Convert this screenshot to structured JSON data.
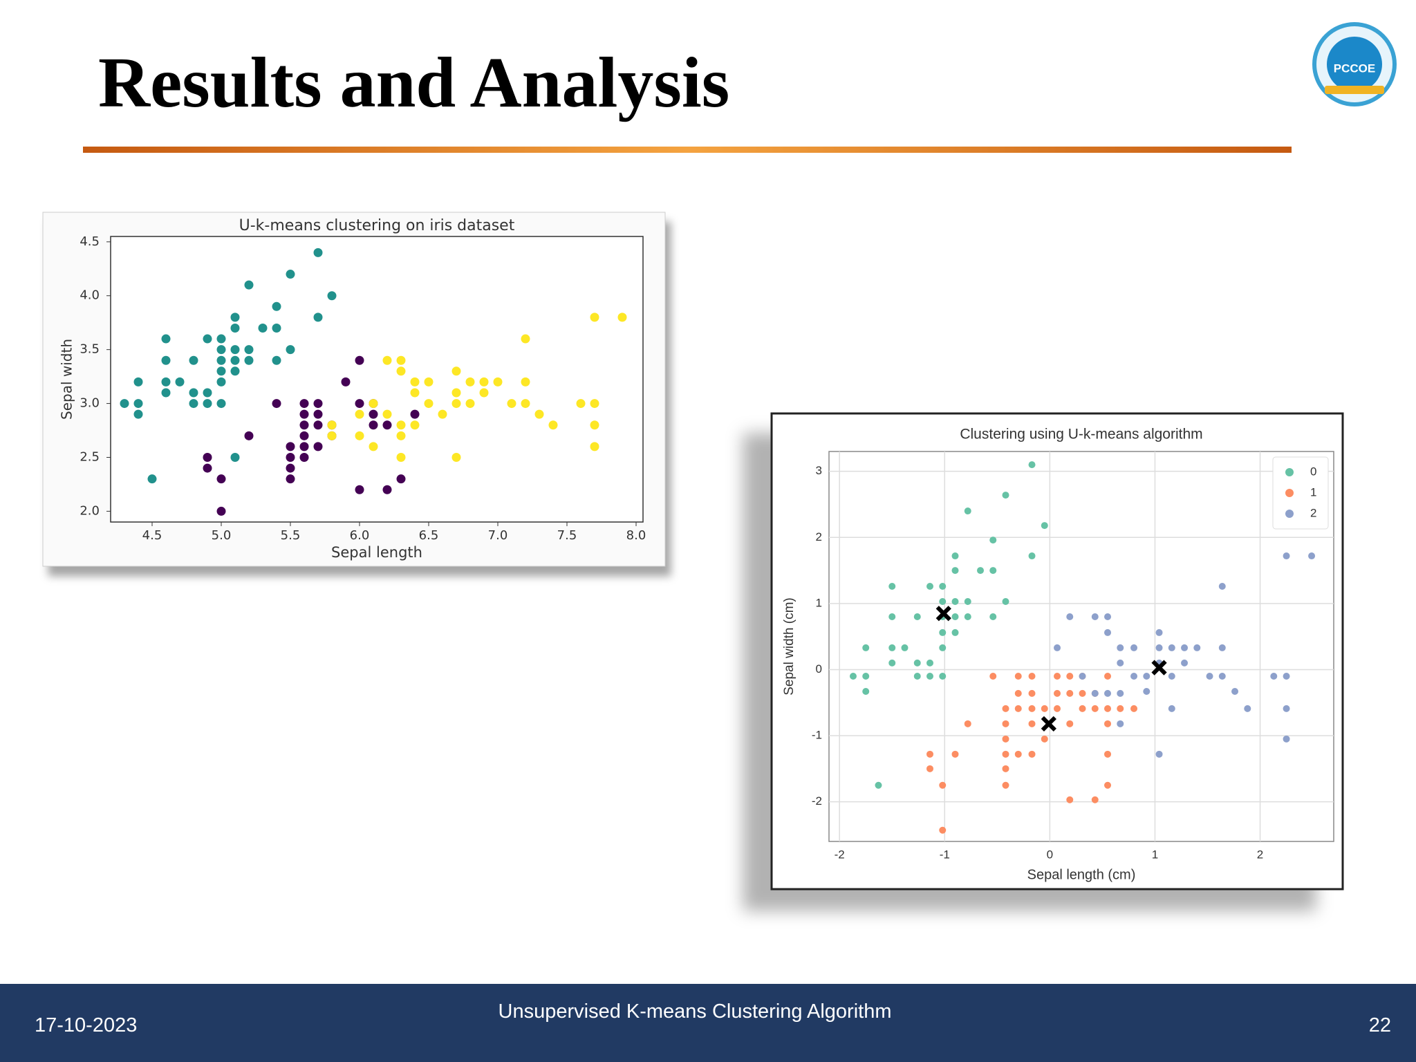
{
  "slide": {
    "title": "Results and Analysis",
    "logo_text": "PCCOE",
    "date": "17-10-2023",
    "footer": "Unsupervised K-means Clustering Algorithm",
    "page_number": "22"
  },
  "chart_data": [
    {
      "type": "scatter",
      "title": "U-k-means clustering on iris dataset",
      "x_label": "Sepal length",
      "y_label": "Sepal width",
      "xlim": [
        4.2,
        8.05
      ],
      "ylim": [
        1.9,
        4.55
      ],
      "xticks": [
        4.5,
        {
          "value": 5,
          "label": "5.0"
        },
        5.5,
        {
          "value": 6,
          "label": "6.0"
        },
        6.5,
        {
          "value": 7,
          "label": "7.0"
        },
        7.5,
        {
          "value": 8,
          "label": "8.0"
        }
      ],
      "yticks": [
        {
          "value": 2,
          "label": "2.0"
        },
        2.5,
        {
          "value": 3,
          "label": "3.0"
        },
        3.5,
        {
          "value": 4,
          "label": "4.0"
        },
        4.5
      ],
      "grid": false,
      "series": [
        {
          "color": "#21918c",
          "x": [
            4.3,
            4.4,
            4.4,
            4.4,
            4.5,
            4.6,
            4.6,
            4.6,
            4.6,
            4.7,
            4.8,
            4.8,
            4.8,
            4.9,
            4.9,
            4.9,
            5.0,
            5.0,
            5.0,
            5.0,
            5.0,
            5.0,
            5.1,
            5.1,
            5.1,
            5.1,
            5.1,
            5.2,
            5.2,
            5.2,
            5.3,
            5.4,
            5.4,
            5.4,
            5.5,
            5.5,
            5.7,
            5.7,
            5.8,
            5.1
          ],
          "y": [
            3.0,
            3.0,
            2.9,
            3.2,
            2.3,
            3.1,
            3.2,
            3.4,
            3.6,
            3.2,
            3.0,
            3.1,
            3.4,
            3.0,
            3.1,
            3.6,
            3.0,
            3.2,
            3.3,
            3.4,
            3.5,
            3.6,
            3.3,
            3.4,
            3.5,
            3.7,
            3.8,
            3.4,
            3.5,
            4.1,
            3.7,
            3.4,
            3.7,
            3.9,
            3.5,
            4.2,
            3.8,
            4.4,
            4.0,
            2.5
          ]
        },
        {
          "color": "#440154",
          "x": [
            4.9,
            4.9,
            5.0,
            5.0,
            5.2,
            5.4,
            5.5,
            5.5,
            5.5,
            5.5,
            5.6,
            5.6,
            5.6,
            5.6,
            5.6,
            5.6,
            5.7,
            5.7,
            5.7,
            5.7,
            5.8,
            5.8,
            5.9,
            6.0,
            6.0,
            6.0,
            6.1,
            6.1,
            6.1,
            6.2,
            6.2,
            6.3,
            6.4
          ],
          "y": [
            2.4,
            2.5,
            2.0,
            2.3,
            2.7,
            3.0,
            2.3,
            2.4,
            2.5,
            2.6,
            2.5,
            2.6,
            2.7,
            2.8,
            2.9,
            3.0,
            2.6,
            2.8,
            2.9,
            3.0,
            2.7,
            2.8,
            3.2,
            2.2,
            3.0,
            3.4,
            2.8,
            2.9,
            3.0,
            2.2,
            2.8,
            2.3,
            2.9
          ]
        },
        {
          "color": "#fde725",
          "x": [
            5.8,
            5.8,
            6.0,
            6.0,
            6.1,
            6.1,
            6.2,
            6.2,
            6.3,
            6.3,
            6.3,
            6.3,
            6.3,
            6.4,
            6.4,
            6.4,
            6.5,
            6.5,
            6.6,
            6.7,
            6.7,
            6.7,
            6.7,
            6.8,
            6.8,
            6.9,
            6.9,
            7.0,
            7.1,
            7.2,
            7.2,
            7.2,
            7.3,
            7.4,
            7.6,
            7.7,
            7.7,
            7.7,
            7.7,
            7.9
          ],
          "y": [
            2.7,
            2.8,
            2.7,
            2.9,
            3.0,
            2.6,
            2.9,
            3.4,
            2.5,
            2.7,
            2.8,
            3.3,
            3.4,
            2.8,
            3.1,
            3.2,
            3.0,
            3.2,
            2.9,
            2.5,
            3.0,
            3.1,
            3.3,
            3.0,
            3.2,
            3.1,
            3.2,
            3.2,
            3.0,
            3.0,
            3.2,
            3.6,
            2.9,
            2.8,
            3.0,
            2.6,
            2.8,
            3.0,
            3.8,
            3.8
          ]
        }
      ]
    },
    {
      "type": "scatter",
      "title": "Clustering using U-k-means algorithm",
      "x_label": "Sepal length (cm)",
      "y_label": "Sepal width (cm)",
      "xlim": [
        -2.1,
        2.7
      ],
      "ylim": [
        -2.6,
        3.3
      ],
      "xticks": [
        -2,
        -1,
        0,
        1,
        2
      ],
      "yticks": [
        -2,
        -1,
        0,
        1,
        2,
        3
      ],
      "grid": true,
      "legend": "upper right",
      "series": [
        {
          "name": "0",
          "color": "#66c2a5",
          "x": [
            -1.87,
            -1.75,
            -1.75,
            -1.75,
            -1.63,
            -1.5,
            -1.5,
            -1.5,
            -1.5,
            -1.38,
            -1.26,
            -1.26,
            -1.26,
            -1.14,
            -1.14,
            -1.14,
            -1.02,
            -1.02,
            -1.02,
            -1.02,
            -1.02,
            -1.02,
            -0.9,
            -0.9,
            -0.9,
            -0.9,
            -0.9,
            -0.78,
            -0.78,
            -0.66,
            -0.78,
            -0.54,
            -0.54,
            -0.54,
            -0.42,
            -0.42,
            -0.17,
            -0.17,
            -0.05
          ],
          "y": [
            -0.1,
            -0.1,
            -0.33,
            0.33,
            -1.75,
            0.1,
            0.33,
            0.8,
            1.26,
            0.33,
            -0.1,
            0.1,
            0.8,
            -0.1,
            0.1,
            1.26,
            -0.1,
            0.33,
            0.56,
            0.8,
            1.03,
            1.26,
            0.56,
            0.8,
            1.03,
            1.5,
            1.72,
            0.8,
            1.03,
            1.5,
            2.4,
            1.5,
            0.8,
            1.96,
            1.03,
            2.64,
            1.72,
            3.1,
            2.18
          ]
        },
        {
          "name": "1",
          "color": "#fc8d62",
          "x": [
            -1.14,
            -1.14,
            -1.02,
            -1.02,
            -0.9,
            -0.78,
            -0.54,
            -0.42,
            -0.42,
            -0.42,
            -0.42,
            -0.42,
            -0.42,
            -0.3,
            -0.3,
            -0.3,
            -0.3,
            -0.17,
            -0.17,
            -0.17,
            -0.17,
            -0.17,
            -0.05,
            -0.05,
            0.07,
            0.07,
            0.07,
            0.19,
            0.19,
            0.19,
            0.19,
            0.31,
            0.31,
            0.31,
            0.43,
            0.43,
            0.43,
            0.55,
            0.55,
            0.55,
            0.55,
            0.55,
            0.67,
            0.8
          ],
          "y": [
            -1.28,
            -1.5,
            -1.75,
            -2.43,
            -1.28,
            -0.82,
            -0.1,
            -0.59,
            -0.82,
            -1.05,
            -1.28,
            -1.5,
            -1.75,
            -0.1,
            -0.36,
            -0.59,
            -1.28,
            -0.1,
            -0.36,
            -0.59,
            -0.82,
            -1.28,
            -0.59,
            -1.05,
            -0.1,
            -0.36,
            -0.59,
            -0.1,
            -0.36,
            -0.82,
            -1.97,
            -0.1,
            -0.36,
            -0.59,
            -0.36,
            -0.59,
            -1.97,
            -0.1,
            -0.59,
            -0.82,
            -1.28,
            -1.75,
            -0.59,
            -0.59
          ]
        },
        {
          "name": "2",
          "color": "#8da0cb",
          "x": [
            0.07,
            0.19,
            0.31,
            0.43,
            0.43,
            0.55,
            0.55,
            0.55,
            0.67,
            0.67,
            0.67,
            0.67,
            0.8,
            0.8,
            0.92,
            0.92,
            1.04,
            1.04,
            1.04,
            1.04,
            1.16,
            1.16,
            1.16,
            1.28,
            1.28,
            1.4,
            1.52,
            1.64,
            1.64,
            1.64,
            1.76,
            1.88,
            2.13,
            2.25,
            2.25,
            2.25,
            2.25,
            2.49
          ],
          "y": [
            0.33,
            0.8,
            -0.1,
            -0.36,
            0.8,
            -0.36,
            0.56,
            0.8,
            -0.36,
            -0.82,
            0.1,
            0.33,
            -0.1,
            0.33,
            -0.1,
            -0.33,
            0.1,
            0.33,
            0.56,
            -1.28,
            -0.1,
            0.33,
            -0.59,
            0.33,
            0.1,
            0.33,
            -0.1,
            -0.1,
            0.33,
            1.26,
            -0.33,
            -0.59,
            -0.1,
            -0.1,
            -0.59,
            -1.05,
            1.72,
            1.72
          ]
        },
        {
          "color": "#000000",
          "marker": "x",
          "x": [
            -1.01,
            -0.01,
            1.04
          ],
          "y": [
            0.85,
            -0.82,
            0.03
          ]
        }
      ]
    }
  ]
}
